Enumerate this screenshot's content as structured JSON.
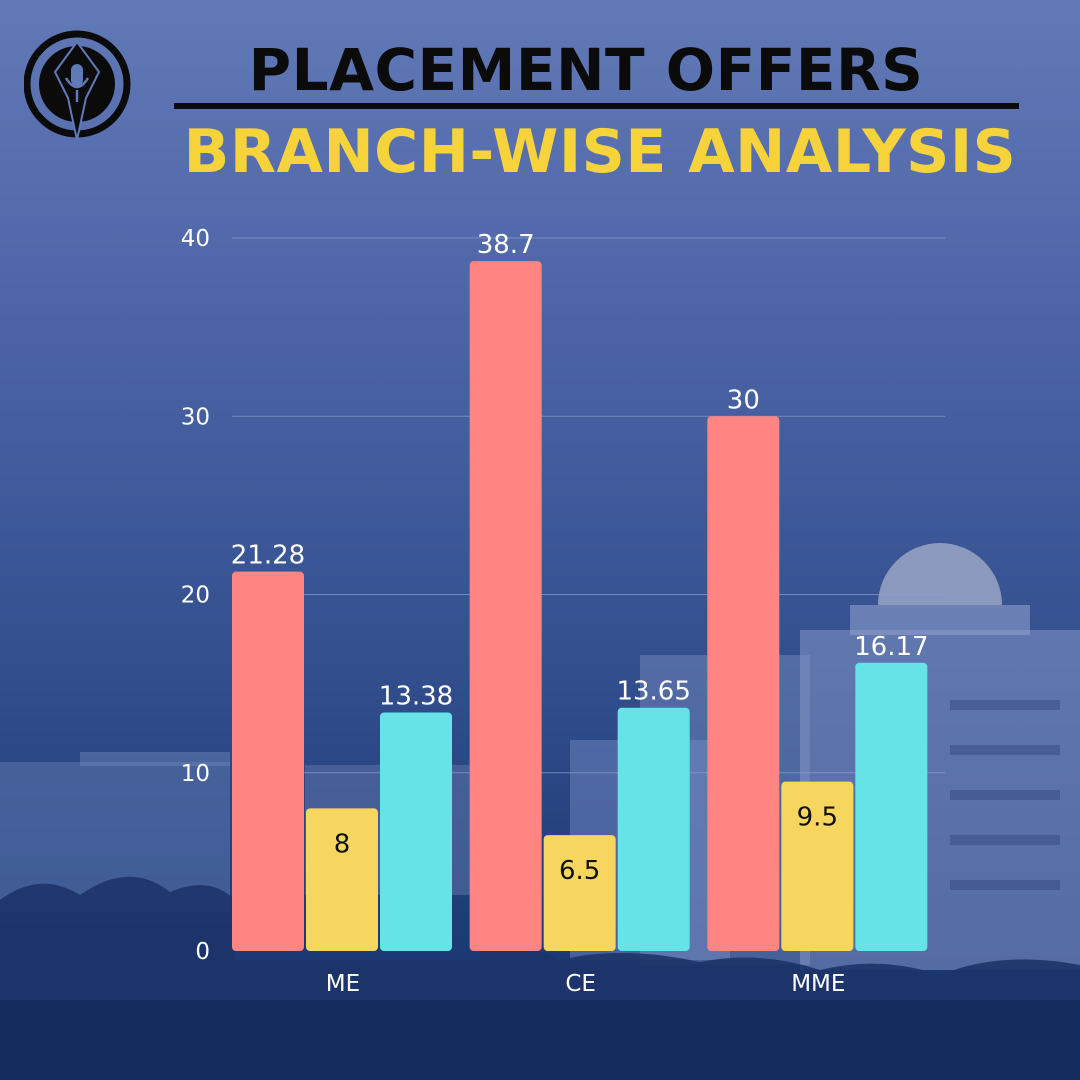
{
  "header": {
    "title": "PLACEMENT OFFERS",
    "subtitle": "BRANCH-WISE ANALYSIS"
  },
  "colors": {
    "title": "#0b0b0b",
    "subtitle": "#f6d33a",
    "axis_text": "#ffffff",
    "gridline": "#8da0cf"
  },
  "logo": {
    "icon": "pen-nib-microphone-icon"
  },
  "chart_data": {
    "type": "bar",
    "categories": [
      "ME",
      "CE",
      "MME"
    ],
    "series": [
      {
        "values": [
          21.28,
          38.7,
          30
        ],
        "color": "#fe8582"
      },
      {
        "values": [
          8,
          6.5,
          9.5
        ],
        "color": "#f7d660"
      },
      {
        "values": [
          13.38,
          13.65,
          16.17
        ],
        "color": "#66e3e6"
      }
    ],
    "ylim": [
      0,
      40
    ],
    "yticks": [
      0,
      10,
      20,
      30,
      40
    ],
    "grid": true,
    "legend": "none",
    "data_labels": [
      [
        "21.28",
        "38.7",
        "30"
      ],
      [
        "8",
        "6.5",
        "9.5"
      ],
      [
        "13.38",
        "13.65",
        "16.17"
      ]
    ]
  }
}
